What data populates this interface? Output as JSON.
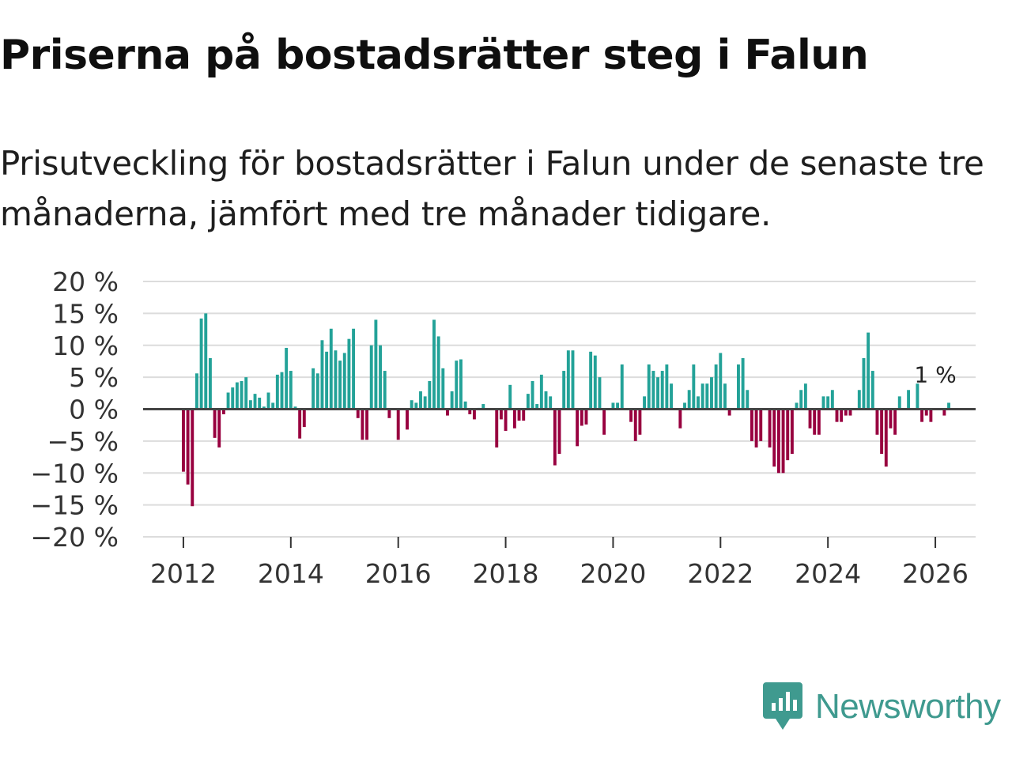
{
  "header": {
    "title": "Priserna på bostadsrätter steg i Falun",
    "subtitle": "Prisutveckling för bostadsrätter i Falun under de senaste tre månaderna, jämfört med tre månader tidigare."
  },
  "brand": {
    "name": "Newsworthy"
  },
  "colors": {
    "positive": "#23a298",
    "negative": "#98003f",
    "grid": "#dcdcdc",
    "zero_line": "#444444",
    "brand": "#3f9a8f"
  },
  "chart_data": {
    "type": "bar",
    "title": "Priserna på bostadsrätter steg i Falun",
    "xlabel": "",
    "ylabel": "",
    "ylim": [
      -20,
      20
    ],
    "yticks": [
      20,
      15,
      10,
      5,
      0,
      -5,
      -10,
      -15,
      -20
    ],
    "ytick_labels": [
      "20 %",
      "15 %",
      "10 %",
      "5 %",
      "0 %",
      "−5 %",
      "−10 %",
      "−15 %",
      "−20 %"
    ],
    "xlim": [
      2011.25,
      2026.75
    ],
    "xticks": [
      2012,
      2014,
      2016,
      2018,
      2020,
      2022,
      2024,
      2026
    ],
    "xtick_labels": [
      "2012",
      "2014",
      "2016",
      "2018",
      "2020",
      "2022",
      "2024",
      "2026"
    ],
    "grid": true,
    "annotation": {
      "text": "1 %",
      "x": 2026.0,
      "value": 1
    },
    "start": {
      "year": 2012,
      "month": 1
    },
    "frequency": "monthly",
    "values": [
      -9.8,
      -11.8,
      -15.2,
      5.6,
      14.2,
      15.0,
      8.0,
      -4.5,
      -6.0,
      -0.8,
      2.6,
      3.4,
      4.2,
      4.4,
      5.0,
      1.4,
      2.4,
      1.8,
      0.4,
      2.6,
      1.0,
      5.4,
      5.8,
      9.6,
      6.0,
      0.4,
      -4.6,
      -2.8,
      0,
      6.4,
      5.6,
      10.8,
      9.0,
      12.6,
      9.2,
      7.6,
      8.8,
      11.0,
      12.6,
      -1.4,
      -4.8,
      -4.8,
      10.0,
      14.0,
      10.0,
      6.0,
      -1.4,
      0,
      -4.8,
      0,
      -3.2,
      1.4,
      1.0,
      2.8,
      2.0,
      4.4,
      14.0,
      11.4,
      6.4,
      -1.0,
      2.8,
      7.6,
      7.8,
      1.2,
      -0.8,
      -1.6,
      0.2,
      0.8,
      0,
      0,
      -6.0,
      -1.6,
      -3.4,
      3.8,
      -3.0,
      -1.8,
      -1.8,
      2.4,
      4.4,
      0.8,
      5.4,
      2.8,
      2.0,
      -8.8,
      -7.0,
      6.0,
      9.2,
      9.2,
      -5.8,
      -2.6,
      -2.4,
      9.0,
      8.4,
      5.0,
      -4.0,
      0,
      1.0,
      1.0,
      7.0,
      0,
      -2.0,
      -5.0,
      -4.0,
      2.0,
      7.0,
      6.0,
      5.0,
      6.0,
      7.0,
      4.0,
      0,
      -3.0,
      1.0,
      3.0,
      7.0,
      2.0,
      4.0,
      4.0,
      5.0,
      7.0,
      8.8,
      4.0,
      -1.0,
      0,
      7.0,
      8.0,
      3.0,
      -5.0,
      -6.0,
      -5.0,
      0,
      -6.0,
      -9.0,
      -10.0,
      -10.0,
      -8.0,
      -7.0,
      1.0,
      3.0,
      4.0,
      -3.0,
      -4.0,
      -4.0,
      2.0,
      2.0,
      3.0,
      -2.0,
      -2.0,
      -1.0,
      -1.0,
      0,
      3.0,
      8.0,
      12.0,
      6.0,
      -4.0,
      -7.0,
      -9.0,
      -3.0,
      -4.0,
      2.0,
      0,
      3.0,
      0,
      4.0,
      -2.0,
      -1.0,
      -2.0,
      0,
      0,
      -1.0,
      1.0
    ]
  }
}
